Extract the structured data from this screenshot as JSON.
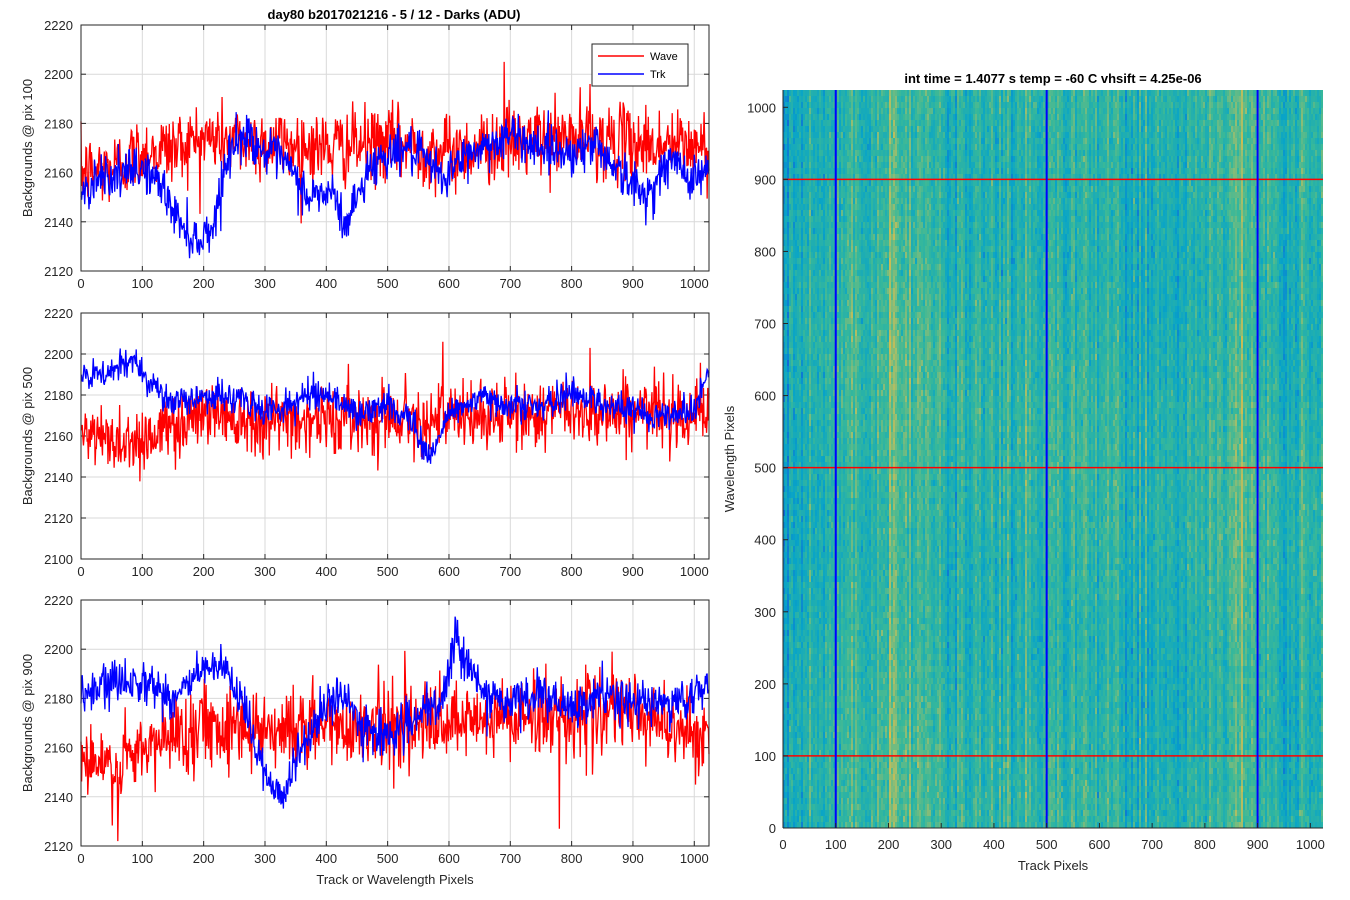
{
  "figure": {
    "left_title": "day80 b2017021216 - 5 / 12 - Darks (ADU)",
    "right_title": "int time = 1.4077 s   temp = -60 C   vhsift = 4.25e-06"
  },
  "chart_data": [
    {
      "type": "line",
      "title": "day80 b2017021216 - 5 / 12 - Darks (ADU)",
      "ylabel": "Backgrounds @ pix 100",
      "xlabel": "",
      "xlim": [
        0,
        1024
      ],
      "ylim": [
        2120,
        2220
      ],
      "xticks": [
        0,
        100,
        200,
        300,
        400,
        500,
        600,
        700,
        800,
        900,
        1000
      ],
      "yticks": [
        2120,
        2140,
        2160,
        2180,
        2200,
        2220
      ],
      "grid": true,
      "legend": {
        "placement": "top-right",
        "entries": [
          "Wave",
          "Trk"
        ]
      },
      "series": [
        {
          "name": "Wave",
          "color": "#ff0000",
          "baseline": 2171,
          "noise": 10,
          "dips": [],
          "peaks": [
            [
              690,
              2205
            ],
            [
              830,
              2196
            ]
          ],
          "anchors": [
            [
              0,
              2160
            ],
            [
              50,
              2162
            ],
            [
              100,
              2168
            ],
            [
              150,
              2170
            ],
            [
              200,
              2174
            ],
            [
              300,
              2172
            ],
            [
              400,
              2170
            ],
            [
              500,
              2172
            ],
            [
              600,
              2168
            ],
            [
              700,
              2172
            ],
            [
              800,
              2174
            ],
            [
              900,
              2172
            ],
            [
              1024,
              2170
            ]
          ]
        },
        {
          "name": "Trk",
          "color": "#0000ff",
          "baseline": 2160,
          "noise": 6,
          "anchors": [
            [
              0,
              2150
            ],
            [
              30,
              2160
            ],
            [
              60,
              2158
            ],
            [
              100,
              2162
            ],
            [
              130,
              2155
            ],
            [
              160,
              2140
            ],
            [
              190,
              2132
            ],
            [
              215,
              2138
            ],
            [
              240,
              2168
            ],
            [
              270,
              2176
            ],
            [
              300,
              2168
            ],
            [
              330,
              2165
            ],
            [
              370,
              2150
            ],
            [
              410,
              2152
            ],
            [
              430,
              2138
            ],
            [
              470,
              2162
            ],
            [
              500,
              2168
            ],
            [
              530,
              2170
            ],
            [
              560,
              2165
            ],
            [
              590,
              2158
            ],
            [
              620,
              2165
            ],
            [
              650,
              2170
            ],
            [
              700,
              2175
            ],
            [
              760,
              2170
            ],
            [
              800,
              2168
            ],
            [
              840,
              2172
            ],
            [
              880,
              2160
            ],
            [
              920,
              2150
            ],
            [
              960,
              2165
            ],
            [
              1000,
              2158
            ],
            [
              1024,
              2162
            ]
          ]
        }
      ]
    },
    {
      "type": "line",
      "ylabel": "Backgrounds @ pix 500",
      "xlabel": "",
      "xlim": [
        0,
        1024
      ],
      "ylim": [
        2100,
        2220
      ],
      "xticks": [
        0,
        100,
        200,
        300,
        400,
        500,
        600,
        700,
        800,
        900,
        1000
      ],
      "yticks": [
        2100,
        2120,
        2140,
        2160,
        2180,
        2200,
        2220
      ],
      "grid": true,
      "series": [
        {
          "name": "Wave",
          "color": "#ff0000",
          "baseline": 2166,
          "noise": 11,
          "peaks": [
            [
              830,
              2203
            ],
            [
              590,
              2206
            ]
          ],
          "anchors": [
            [
              0,
              2160
            ],
            [
              50,
              2158
            ],
            [
              100,
              2158
            ],
            [
              150,
              2165
            ],
            [
              200,
              2172
            ],
            [
              300,
              2168
            ],
            [
              400,
              2168
            ],
            [
              500,
              2170
            ],
            [
              600,
              2168
            ],
            [
              700,
              2170
            ],
            [
              800,
              2172
            ],
            [
              900,
              2172
            ],
            [
              1024,
              2172
            ]
          ]
        },
        {
          "name": "Trk",
          "color": "#0000ff",
          "baseline": 2175,
          "noise": 5,
          "anchors": [
            [
              0,
              2188
            ],
            [
              40,
              2190
            ],
            [
              90,
              2197
            ],
            [
              110,
              2188
            ],
            [
              150,
              2175
            ],
            [
              200,
              2180
            ],
            [
              260,
              2178
            ],
            [
              300,
              2172
            ],
            [
              350,
              2176
            ],
            [
              380,
              2182
            ],
            [
              420,
              2178
            ],
            [
              450,
              2170
            ],
            [
              500,
              2175
            ],
            [
              540,
              2168
            ],
            [
              570,
              2148
            ],
            [
              600,
              2172
            ],
            [
              650,
              2178
            ],
            [
              700,
              2176
            ],
            [
              760,
              2174
            ],
            [
              800,
              2182
            ],
            [
              850,
              2176
            ],
            [
              900,
              2172
            ],
            [
              960,
              2170
            ],
            [
              1000,
              2174
            ],
            [
              1024,
              2192
            ]
          ]
        }
      ]
    },
    {
      "type": "line",
      "ylabel": "Backgrounds @ pix 900",
      "xlabel": "Track or Wavelength Pixels",
      "xlim": [
        0,
        1024
      ],
      "ylim": [
        2120,
        2220
      ],
      "xticks": [
        0,
        100,
        200,
        300,
        400,
        500,
        600,
        700,
        800,
        900,
        1000
      ],
      "yticks": [
        2120,
        2140,
        2160,
        2180,
        2200,
        2220
      ],
      "grid": true,
      "series": [
        {
          "name": "Wave",
          "color": "#ff0000",
          "baseline": 2167,
          "noise": 11,
          "dips": [
            [
              60,
              2122
            ],
            [
              780,
              2127
            ]
          ],
          "anchors": [
            [
              0,
              2155
            ],
            [
              50,
              2150
            ],
            [
              100,
              2158
            ],
            [
              150,
              2165
            ],
            [
              200,
              2170
            ],
            [
              300,
              2168
            ],
            [
              400,
              2168
            ],
            [
              500,
              2170
            ],
            [
              600,
              2168
            ],
            [
              700,
              2172
            ],
            [
              800,
              2174
            ],
            [
              900,
              2174
            ],
            [
              1024,
              2164
            ]
          ]
        },
        {
          "name": "Trk",
          "color": "#0000ff",
          "baseline": 2180,
          "noise": 6,
          "anchors": [
            [
              0,
              2180
            ],
            [
              50,
              2186
            ],
            [
              100,
              2188
            ],
            [
              150,
              2180
            ],
            [
              200,
              2192
            ],
            [
              240,
              2190
            ],
            [
              270,
              2172
            ],
            [
              300,
              2150
            ],
            [
              330,
              2140
            ],
            [
              360,
              2160
            ],
            [
              400,
              2178
            ],
            [
              430,
              2180
            ],
            [
              460,
              2168
            ],
            [
              500,
              2165
            ],
            [
              550,
              2172
            ],
            [
              590,
              2178
            ],
            [
              610,
              2205
            ],
            [
              630,
              2196
            ],
            [
              660,
              2180
            ],
            [
              700,
              2178
            ],
            [
              750,
              2182
            ],
            [
              800,
              2174
            ],
            [
              850,
              2182
            ],
            [
              900,
              2178
            ],
            [
              960,
              2178
            ],
            [
              1000,
              2180
            ],
            [
              1024,
              2188
            ]
          ]
        }
      ]
    },
    {
      "type": "heatmap",
      "title": "int time = 1.4077 s   temp = -60 C   vhsift = 4.25e-06",
      "xlabel": "Track Pixels",
      "ylabel": "Wavelength Pixels",
      "xlim": [
        0,
        1024
      ],
      "ylim": [
        0,
        1024
      ],
      "xticks": [
        0,
        100,
        200,
        300,
        400,
        500,
        600,
        700,
        800,
        900,
        1000
      ],
      "yticks": [
        0,
        100,
        200,
        300,
        400,
        500,
        600,
        700,
        800,
        900,
        1000
      ],
      "colormap": "parula",
      "marker_lines": {
        "vertical": {
          "color": "#0000ff",
          "x": [
            100,
            500,
            900
          ]
        },
        "horizontal": {
          "color": "#ff0000",
          "y": [
            100,
            500,
            900
          ]
        }
      }
    }
  ]
}
